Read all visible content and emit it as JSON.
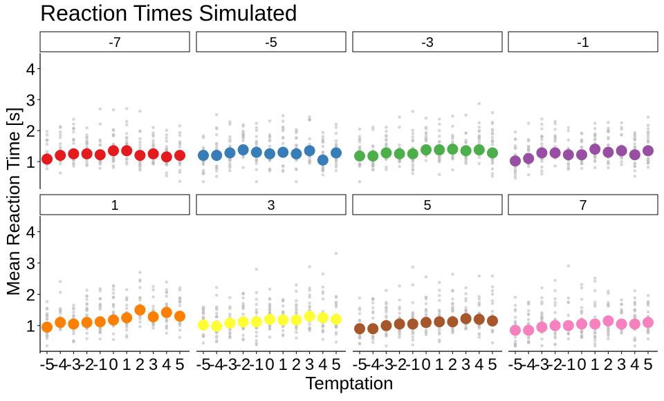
{
  "chart_data": {
    "type": "scatter",
    "title": "Reaction Times Simulated",
    "xlabel": "Temptation",
    "ylabel": "Mean Reaction Time [s]",
    "x_categories": [
      "-5",
      "-4",
      "-3",
      "-2",
      "-1",
      "0",
      "1",
      "2",
      "3",
      "4",
      "5"
    ],
    "y_ticks": [
      1,
      2,
      3,
      4
    ],
    "ylim": [
      0.2,
      4.5
    ],
    "grid": false,
    "legend": "none",
    "panels": [
      {
        "label": "-7",
        "color": "#E41A1C",
        "means": [
          1.08,
          1.2,
          1.25,
          1.25,
          1.22,
          1.35,
          1.35,
          1.2,
          1.25,
          1.15,
          1.2
        ]
      },
      {
        "label": "-5",
        "color": "#377EB8",
        "means": [
          1.2,
          1.2,
          1.28,
          1.38,
          1.3,
          1.25,
          1.3,
          1.25,
          1.35,
          1.05,
          1.28
        ]
      },
      {
        "label": "-3",
        "color": "#4DAF4A",
        "means": [
          1.18,
          1.18,
          1.28,
          1.25,
          1.25,
          1.38,
          1.38,
          1.4,
          1.35,
          1.38,
          1.28
        ]
      },
      {
        "label": "-1",
        "color": "#984EA3",
        "means": [
          1.02,
          1.1,
          1.28,
          1.28,
          1.22,
          1.22,
          1.4,
          1.3,
          1.35,
          1.22,
          1.35
        ]
      },
      {
        "label": "1",
        "color": "#FF7F00",
        "means": [
          0.95,
          1.1,
          1.05,
          1.1,
          1.12,
          1.18,
          1.25,
          1.5,
          1.28,
          1.42,
          1.3
        ]
      },
      {
        "label": "3",
        "color": "#FFFF33",
        "means": [
          1.02,
          0.98,
          1.08,
          1.12,
          1.12,
          1.2,
          1.18,
          1.18,
          1.3,
          1.25,
          1.2
        ]
      },
      {
        "label": "5",
        "color": "#A65628",
        "means": [
          0.9,
          0.9,
          1.0,
          1.05,
          1.05,
          1.1,
          1.12,
          1.12,
          1.22,
          1.2,
          1.15
        ]
      },
      {
        "label": "7",
        "color": "#F781BF",
        "means": [
          0.85,
          0.85,
          0.95,
          1.0,
          1.0,
          1.05,
          1.05,
          1.15,
          1.05,
          1.05,
          1.1
        ]
      }
    ],
    "raw_points_color": "#BEBEBE"
  }
}
